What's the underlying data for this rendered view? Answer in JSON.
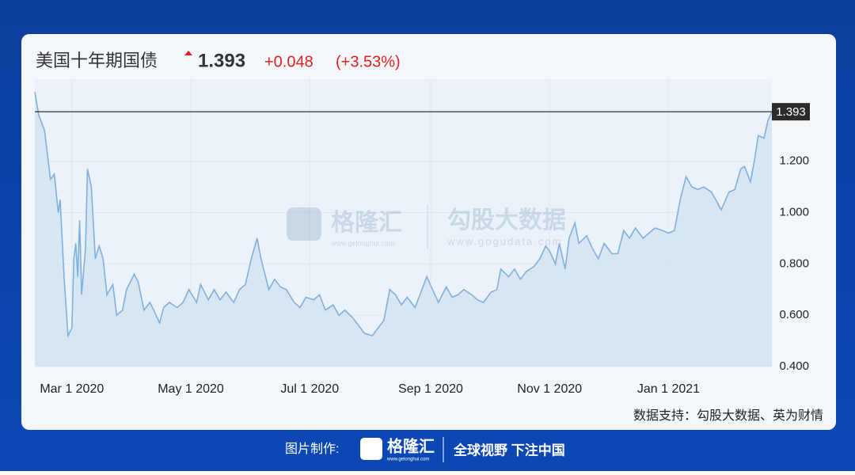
{
  "header": {
    "title": "美国十年期国债",
    "change": "+0.048",
    "change_pct": "(+3.53%)"
  },
  "watermark": {
    "brand": "格隆汇",
    "brand_url": "www.gelonghui.com",
    "partner": "勾股大数据",
    "partner_url": "www.gogudata.com"
  },
  "source": "数据支持：勾股大数据、英为财情",
  "footer": {
    "made_by": "图片制作:",
    "logo": "格隆汇",
    "logo_url": "www.gelonghui.com",
    "slogan": "全球视野 下注中国"
  },
  "chart_data": {
    "type": "area-line",
    "title": "1.393",
    "reference_line": 1.393,
    "x": [
      "2020-02-11",
      "2020-02-13",
      "2020-02-16",
      "2020-02-19",
      "2020-02-21",
      "2020-02-23",
      "2020-02-24",
      "2020-02-26",
      "2020-02-28",
      "2020-03-01",
      "2020-03-02",
      "2020-03-03",
      "2020-03-04",
      "2020-03-05",
      "2020-03-06",
      "2020-03-08",
      "2020-03-09",
      "2020-03-11",
      "2020-03-13",
      "2020-03-15",
      "2020-03-17",
      "2020-03-19",
      "2020-03-22",
      "2020-03-24",
      "2020-03-27",
      "2020-03-29",
      "2020-04-02",
      "2020-04-04",
      "2020-04-07",
      "2020-04-10",
      "2020-04-12",
      "2020-04-15",
      "2020-04-17",
      "2020-04-20",
      "2020-04-24",
      "2020-04-27",
      "2020-04-30",
      "2020-05-04",
      "2020-05-06",
      "2020-05-10",
      "2020-05-13",
      "2020-05-16",
      "2020-05-19",
      "2020-05-23",
      "2020-05-26",
      "2020-05-29",
      "2020-06-01",
      "2020-06-04",
      "2020-06-06",
      "2020-06-10",
      "2020-06-13",
      "2020-06-16",
      "2020-06-19",
      "2020-06-23",
      "2020-06-26",
      "2020-06-29",
      "2020-07-03",
      "2020-07-06",
      "2020-07-09",
      "2020-07-13",
      "2020-07-16",
      "2020-07-19",
      "2020-07-23",
      "2020-07-26",
      "2020-07-29",
      "2020-08-02",
      "2020-08-05",
      "2020-08-08",
      "2020-08-11",
      "2020-08-14",
      "2020-08-17",
      "2020-08-20",
      "2020-08-24",
      "2020-08-27",
      "2020-08-30",
      "2020-09-02",
      "2020-09-05",
      "2020-09-09",
      "2020-09-12",
      "2020-09-15",
      "2020-09-18",
      "2020-09-22",
      "2020-09-25",
      "2020-09-28",
      "2020-10-02",
      "2020-10-05",
      "2020-10-07",
      "2020-10-11",
      "2020-10-14",
      "2020-10-17",
      "2020-10-20",
      "2020-10-24",
      "2020-10-27",
      "2020-10-30",
      "2020-11-01",
      "2020-11-04",
      "2020-11-06",
      "2020-11-09",
      "2020-11-11",
      "2020-11-14",
      "2020-11-16",
      "2020-11-20",
      "2020-11-23",
      "2020-11-26",
      "2020-11-29",
      "2020-12-03",
      "2020-12-06",
      "2020-12-09",
      "2020-12-12",
      "2020-12-15",
      "2020-12-19",
      "2020-12-22",
      "2020-12-25",
      "2020-12-29",
      "2021-01-01",
      "2021-01-04",
      "2021-01-07",
      "2021-01-10",
      "2021-01-13",
      "2021-01-16",
      "2021-01-19",
      "2021-01-23",
      "2021-01-26",
      "2021-01-28",
      "2021-02-01",
      "2021-02-04",
      "2021-02-07",
      "2021-02-09",
      "2021-02-12",
      "2021-02-14",
      "2021-02-16",
      "2021-02-19",
      "2021-02-21",
      "2021-02-23"
    ],
    "series": [
      {
        "color": "#7fb0de",
        "values": [
          1.47,
          1.38,
          1.32,
          1.13,
          1.15,
          1.0,
          1.05,
          0.75,
          0.52,
          0.55,
          0.82,
          0.88,
          0.75,
          0.97,
          0.68,
          0.86,
          1.17,
          1.1,
          0.82,
          0.87,
          0.82,
          0.68,
          0.72,
          0.6,
          0.62,
          0.7,
          0.76,
          0.73,
          0.62,
          0.65,
          0.62,
          0.57,
          0.63,
          0.65,
          0.63,
          0.65,
          0.7,
          0.65,
          0.72,
          0.66,
          0.7,
          0.66,
          0.69,
          0.65,
          0.7,
          0.72,
          0.82,
          0.9,
          0.82,
          0.7,
          0.74,
          0.71,
          0.7,
          0.65,
          0.63,
          0.67,
          0.66,
          0.68,
          0.62,
          0.64,
          0.6,
          0.62,
          0.59,
          0.56,
          0.53,
          0.52,
          0.55,
          0.58,
          0.7,
          0.68,
          0.64,
          0.67,
          0.63,
          0.69,
          0.75,
          0.7,
          0.65,
          0.71,
          0.67,
          0.68,
          0.7,
          0.68,
          0.66,
          0.65,
          0.69,
          0.7,
          0.78,
          0.75,
          0.78,
          0.74,
          0.77,
          0.79,
          0.82,
          0.87,
          0.85,
          0.8,
          0.88,
          0.78,
          0.9,
          0.96,
          0.88,
          0.91,
          0.86,
          0.82,
          0.88,
          0.84,
          0.84,
          0.93,
          0.9,
          0.94,
          0.9,
          0.92,
          0.94,
          0.93,
          0.92,
          0.93,
          1.05,
          1.14,
          1.1,
          1.09,
          1.1,
          1.08,
          1.04,
          1.01,
          1.08,
          1.09,
          1.17,
          1.18,
          1.12,
          1.2,
          1.3,
          1.29,
          1.36,
          1.393
        ]
      }
    ],
    "xlim": [
      "2020-02-11",
      "2021-02-23"
    ],
    "xticks": [
      {
        "value": "2020-03-01",
        "label": "Mar 1 2020"
      },
      {
        "value": "2020-05-01",
        "label": "May 1 2020"
      },
      {
        "value": "2020-07-01",
        "label": "Jul 1 2020"
      },
      {
        "value": "2020-09-01",
        "label": "Sep 1 2020"
      },
      {
        "value": "2020-11-01",
        "label": "Nov 1 2020"
      },
      {
        "value": "2021-01-01",
        "label": "Jan 1 2021"
      }
    ],
    "ylim": [
      0.4,
      1.52
    ],
    "yticks": [
      {
        "value": 0.4,
        "label": "0.400"
      },
      {
        "value": 0.6,
        "label": "0.600"
      },
      {
        "value": 0.8,
        "label": "0.800"
      },
      {
        "value": 1.0,
        "label": "1.000"
      },
      {
        "value": 1.2,
        "label": "1.200"
      }
    ],
    "grid": true
  }
}
